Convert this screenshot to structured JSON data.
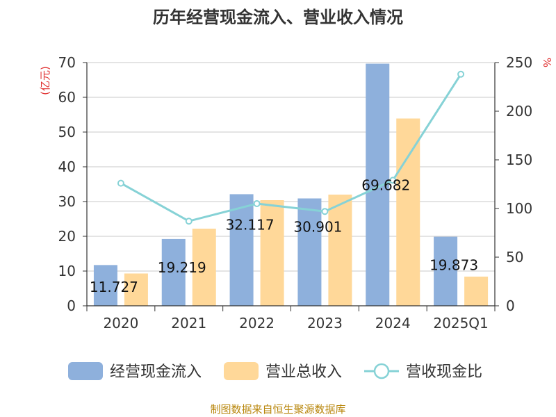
{
  "colors": {
    "bar1": "#8eb0dc",
    "bar2": "#ffd899",
    "line": "#86d2d6",
    "grid": "#c8c8c8",
    "axis": "#333333",
    "unit": "#e03030",
    "source": "#b8860b"
  },
  "chart_data": {
    "type": "bar",
    "title": "历年经营现金流入、营业收入情况",
    "categories": [
      "2020",
      "2021",
      "2022",
      "2023",
      "2024",
      "2025Q1"
    ],
    "y_left": {
      "unit_label": "(亿元)",
      "ylim": [
        0,
        70
      ],
      "ticks": [
        "0",
        "10",
        "20",
        "30",
        "40",
        "50",
        "60",
        "70"
      ]
    },
    "y_right": {
      "unit_label": "%",
      "ylim": [
        0,
        250
      ],
      "ticks": [
        "0",
        "50",
        "100",
        "150",
        "200",
        "250"
      ]
    },
    "grid": true,
    "legend_position": "bottom",
    "series": [
      {
        "name": "经营现金流入",
        "kind": "bar",
        "axis": "left",
        "values": [
          11.727,
          19.219,
          32.117,
          30.901,
          69.682,
          19.873
        ],
        "labels": [
          "11.727",
          "19.219",
          "32.117",
          "30.901",
          "69.682",
          "19.873"
        ]
      },
      {
        "name": "营业总收入",
        "kind": "bar",
        "axis": "left",
        "values": [
          9.3,
          22.2,
          30.4,
          32.0,
          53.9,
          8.4
        ]
      },
      {
        "name": "营收现金比",
        "kind": "line",
        "axis": "right",
        "values": [
          126,
          87,
          105,
          97,
          129,
          238
        ]
      }
    ],
    "source": "制图数据来自恒生聚源数据库"
  }
}
